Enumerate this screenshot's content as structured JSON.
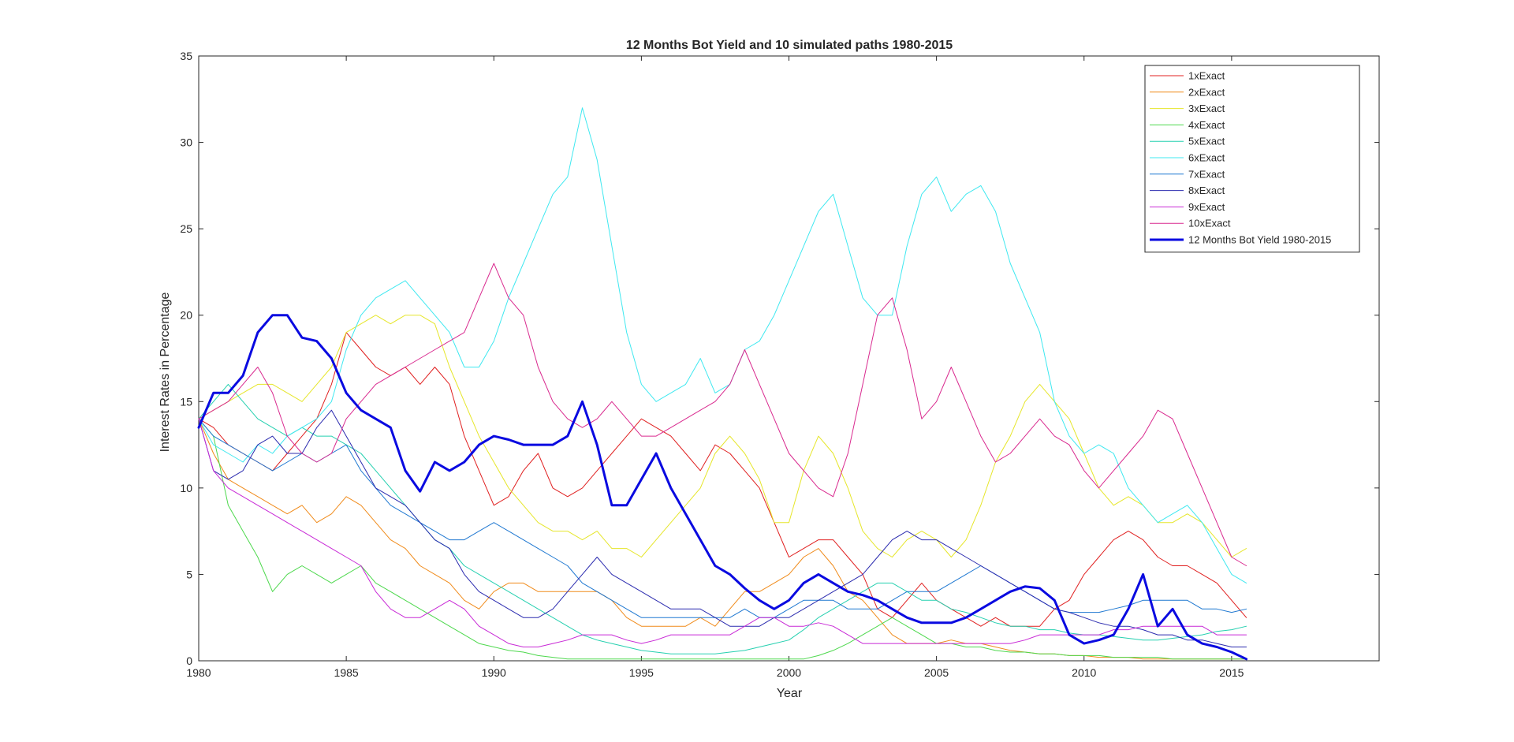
{
  "chart_data": {
    "type": "line",
    "title": "12 Months Bot Yield and 10 simulated paths 1980-2015",
    "xlabel": "Year",
    "ylabel": "Interest Rates in Percentage",
    "xlim": [
      1980,
      2020
    ],
    "ylim": [
      0,
      35
    ],
    "xticks": [
      1980,
      1985,
      1990,
      1995,
      2000,
      2005,
      2010,
      2015
    ],
    "yticks": [
      0,
      5,
      10,
      15,
      20,
      25,
      30,
      35
    ],
    "grid": false,
    "legend_position": "top-right",
    "x": [
      1980,
      1980.5,
      1981,
      1981.5,
      1982,
      1982.5,
      1983,
      1983.5,
      1984,
      1984.5,
      1985,
      1985.5,
      1986,
      1986.5,
      1987,
      1987.5,
      1988,
      1988.5,
      1989,
      1989.5,
      1990,
      1990.5,
      1991,
      1991.5,
      1992,
      1992.5,
      1993,
      1993.5,
      1994,
      1994.5,
      1995,
      1995.5,
      1996,
      1996.5,
      1997,
      1997.5,
      1998,
      1998.5,
      1999,
      1999.5,
      2000,
      2000.5,
      2001,
      2001.5,
      2002,
      2002.5,
      2003,
      2003.5,
      2004,
      2004.5,
      2005,
      2005.5,
      2006,
      2006.5,
      2007,
      2007.5,
      2008,
      2008.5,
      2009,
      2009.5,
      2010,
      2010.5,
      2011,
      2011.5,
      2012,
      2012.5,
      2013,
      2013.5,
      2014,
      2014.5,
      2015,
      2015.5
    ],
    "series": [
      {
        "name": "1xExact",
        "color": "#e02020",
        "width": 1,
        "values": [
          14,
          13.5,
          12.5,
          12,
          11.5,
          11,
          12,
          13,
          14,
          16,
          19,
          18,
          17,
          16.5,
          17,
          16,
          17,
          16,
          13,
          11,
          9,
          9.5,
          11,
          12,
          10,
          9.5,
          10,
          11,
          12,
          13,
          14,
          13.5,
          13,
          12,
          11,
          12.5,
          12,
          11,
          10,
          8,
          6,
          6.5,
          7,
          7,
          6,
          5,
          3,
          2.5,
          3.5,
          4.5,
          3.5,
          3,
          2.5,
          2,
          2.5,
          2,
          2,
          2,
          3,
          3.5,
          5,
          6,
          7,
          7.5,
          7,
          6,
          5.5,
          5.5,
          5,
          4.5,
          3.5,
          2.5
        ]
      },
      {
        "name": "2xExact",
        "color": "#f08b1b",
        "width": 1,
        "values": [
          14,
          12,
          10.5,
          10,
          9.5,
          9,
          8.5,
          9,
          8,
          8.5,
          9.5,
          9,
          8,
          7,
          6.5,
          5.5,
          5,
          4.5,
          3.5,
          3,
          4,
          4.5,
          4.5,
          4,
          4,
          4,
          4,
          4,
          3.5,
          2.5,
          2,
          2,
          2,
          2,
          2.5,
          2,
          3,
          4,
          4,
          4.5,
          5,
          6,
          6.5,
          5.5,
          4,
          3.5,
          2.5,
          1.5,
          1,
          1,
          1,
          1.2,
          1,
          1,
          0.8,
          0.6,
          0.5,
          0.4,
          0.4,
          0.3,
          0.3,
          0.2,
          0.2,
          0.2,
          0.1,
          0.1,
          0.1,
          0.1,
          0.1,
          0.1,
          0.1,
          0.1
        ]
      },
      {
        "name": "3xExact",
        "color": "#e6e62a",
        "width": 1,
        "values": [
          14,
          14.5,
          15,
          15.5,
          16,
          16,
          15.5,
          15,
          16,
          17,
          19,
          19.5,
          20,
          19.5,
          20,
          20,
          19.5,
          17,
          15,
          13,
          11.5,
          10,
          9,
          8,
          7.5,
          7.5,
          7,
          7.5,
          6.5,
          6.5,
          6,
          7,
          8,
          9,
          10,
          12,
          13,
          12,
          10.5,
          8,
          8,
          11,
          13,
          12,
          10,
          7.5,
          6.5,
          6,
          7,
          7.5,
          7,
          6,
          7,
          9,
          11.5,
          13,
          15,
          16,
          15,
          14,
          12,
          10,
          9,
          9.5,
          9,
          8,
          8,
          8.5,
          8,
          7,
          6,
          6.5
        ]
      },
      {
        "name": "4xExact",
        "color": "#4dd84d",
        "width": 1,
        "values": [
          14,
          13,
          9,
          7.5,
          6,
          4,
          5,
          5.5,
          5,
          4.5,
          5,
          5.5,
          4.5,
          4,
          3.5,
          3,
          2.5,
          2,
          1.5,
          1,
          0.8,
          0.6,
          0.5,
          0.3,
          0.2,
          0.1,
          0.1,
          0.1,
          0.1,
          0.1,
          0.1,
          0.1,
          0.1,
          0.1,
          0.1,
          0.1,
          0.1,
          0.1,
          0.1,
          0.1,
          0.1,
          0.1,
          0.3,
          0.6,
          1,
          1.5,
          2,
          2.5,
          2,
          1.5,
          1,
          1,
          0.8,
          0.8,
          0.6,
          0.5,
          0.5,
          0.4,
          0.4,
          0.3,
          0.3,
          0.3,
          0.2,
          0.2,
          0.2,
          0.2,
          0.1,
          0.1,
          0.1,
          0.1,
          0.1,
          0.1
        ]
      },
      {
        "name": "5xExact",
        "color": "#26d0b0",
        "width": 1,
        "values": [
          14,
          15,
          16,
          15,
          14,
          13.5,
          13,
          13.5,
          13,
          13,
          12.5,
          12,
          11,
          10,
          9,
          8,
          7,
          6.5,
          5.5,
          5,
          4.5,
          4,
          3.5,
          3,
          2.5,
          2,
          1.5,
          1.2,
          1,
          0.8,
          0.6,
          0.5,
          0.4,
          0.4,
          0.4,
          0.4,
          0.5,
          0.6,
          0.8,
          1,
          1.2,
          1.8,
          2.5,
          3,
          3.5,
          4,
          4.5,
          4.5,
          4,
          3.5,
          3.5,
          3,
          2.8,
          2.5,
          2.2,
          2,
          2,
          1.8,
          1.8,
          1.6,
          1.5,
          1.5,
          1.4,
          1.3,
          1.2,
          1.2,
          1.3,
          1.4,
          1.5,
          1.7,
          1.8,
          2
        ]
      },
      {
        "name": "6xExact",
        "color": "#3fe8f0",
        "width": 1,
        "values": [
          14,
          12.5,
          12,
          11.5,
          12.5,
          12,
          13,
          13.5,
          14,
          15,
          18,
          20,
          21,
          21.5,
          22,
          21,
          20,
          19,
          17,
          17,
          18.5,
          21,
          23,
          25,
          27,
          28,
          32,
          29,
          24,
          19,
          16,
          15,
          15.5,
          16,
          17.5,
          15.5,
          16,
          18,
          18.5,
          20,
          22,
          24,
          26,
          27,
          24,
          21,
          20,
          20,
          24,
          27,
          28,
          26,
          27,
          27.5,
          26,
          23,
          21,
          19,
          15,
          13,
          12,
          12.5,
          12,
          10,
          9,
          8,
          8.5,
          9,
          8,
          6.5,
          5,
          4.5
        ]
      },
      {
        "name": "7xExact",
        "color": "#1f78d1",
        "width": 1,
        "values": [
          14,
          13,
          12.5,
          12,
          11.5,
          11,
          11.5,
          12,
          11.5,
          12,
          12.5,
          11,
          10,
          9,
          8.5,
          8,
          7.5,
          7,
          7,
          7.5,
          8,
          7.5,
          7,
          6.5,
          6,
          5.5,
          4.5,
          4,
          3.5,
          3,
          2.5,
          2.5,
          2.5,
          2.5,
          2.5,
          2.5,
          2.5,
          3,
          2.5,
          2.5,
          3,
          3.5,
          3.5,
          3.5,
          3,
          3,
          3,
          3.5,
          4,
          4,
          4,
          4.5,
          5,
          5.5,
          5,
          4.5,
          4,
          3.5,
          3,
          2.8,
          2.8,
          2.8,
          3,
          3.2,
          3.5,
          3.5,
          3.5,
          3.5,
          3,
          3,
          2.8,
          3
        ]
      },
      {
        "name": "8xExact",
        "color": "#2b2baf",
        "width": 1,
        "values": [
          14,
          11,
          10.5,
          11,
          12.5,
          13,
          12,
          12,
          13.5,
          14.5,
          13,
          11.5,
          10,
          9.5,
          9,
          8,
          7,
          6.5,
          5,
          4,
          3.5,
          3,
          2.5,
          2.5,
          3,
          4,
          5,
          6,
          5,
          4.5,
          4,
          3.5,
          3,
          3,
          3,
          2.5,
          2,
          2,
          2,
          2.5,
          2.5,
          3,
          3.5,
          4,
          4.5,
          5,
          6,
          7,
          7.5,
          7,
          7,
          6.5,
          6,
          5.5,
          5,
          4.5,
          4,
          3.5,
          3,
          2.8,
          2.5,
          2.2,
          2,
          2,
          1.8,
          1.5,
          1.5,
          1.2,
          1.2,
          1,
          0.8,
          0.8
        ]
      },
      {
        "name": "9xExact",
        "color": "#c829d6",
        "width": 1,
        "values": [
          14,
          11,
          10,
          9.5,
          9,
          8.5,
          8,
          7.5,
          7,
          6.5,
          6,
          5.5,
          4,
          3,
          2.5,
          2.5,
          3,
          3.5,
          3,
          2,
          1.5,
          1,
          0.8,
          0.8,
          1,
          1.2,
          1.5,
          1.5,
          1.5,
          1.2,
          1,
          1.2,
          1.5,
          1.5,
          1.5,
          1.5,
          1.5,
          2,
          2.5,
          2.5,
          2,
          2,
          2.2,
          2,
          1.5,
          1,
          1,
          1,
          1,
          1,
          1,
          1,
          1,
          1,
          1,
          1,
          1.2,
          1.5,
          1.5,
          1.5,
          1.5,
          1.5,
          1.8,
          1.8,
          2,
          2,
          2,
          2,
          2,
          1.5,
          1.5,
          1.5
        ]
      },
      {
        "name": "10xExact",
        "color": "#d92a8f",
        "width": 1,
        "values": [
          14,
          14.5,
          15,
          16,
          17,
          15.5,
          13,
          12,
          11.5,
          12,
          14,
          15,
          16,
          16.5,
          17,
          17.5,
          18,
          18.5,
          19,
          21,
          23,
          21,
          20,
          17,
          15,
          14,
          13.5,
          14,
          15,
          14,
          13,
          13,
          13.5,
          14,
          14.5,
          15,
          16,
          18,
          16,
          14,
          12,
          11,
          10,
          9.5,
          12,
          16,
          20,
          21,
          18,
          14,
          15,
          17,
          15,
          13,
          11.5,
          12,
          13,
          14,
          13,
          12.5,
          11,
          10,
          11,
          12,
          13,
          14.5,
          14,
          12,
          10,
          8,
          6,
          5.5
        ]
      },
      {
        "name": "12 Months Bot Yield 1980-2015",
        "color": "#0a0ae0",
        "width": 3,
        "values": [
          13.5,
          15.5,
          15.5,
          16.5,
          19,
          20,
          20,
          18.7,
          18.5,
          17.5,
          15.5,
          14.5,
          14,
          13.5,
          11,
          9.8,
          11.5,
          11,
          11.5,
          12.5,
          13,
          12.8,
          12.5,
          12.5,
          12.5,
          13,
          15,
          12.5,
          9,
          9,
          10.5,
          12,
          10,
          8.5,
          7,
          5.5,
          5,
          4.2,
          3.5,
          3,
          3.5,
          4.5,
          5,
          4.5,
          4,
          3.8,
          3.5,
          3,
          2.5,
          2.2,
          2.2,
          2.2,
          2.5,
          3,
          3.5,
          4,
          4.3,
          4.2,
          3.5,
          1.5,
          1,
          1.2,
          1.5,
          3,
          5,
          2,
          3,
          1.5,
          1,
          0.8,
          0.5,
          0.1
        ]
      }
    ]
  }
}
